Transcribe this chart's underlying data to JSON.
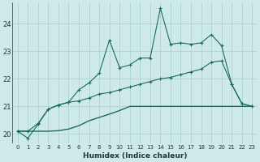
{
  "xlabel": "Humidex (Indice chaleur)",
  "bg_color": "#ceeae8",
  "grid_color": "#aed4d0",
  "line_color": "#1a6b5a",
  "xlim": [
    -0.5,
    23.5
  ],
  "ylim": [
    19.65,
    24.75
  ],
  "x_ticks": [
    0,
    1,
    2,
    3,
    4,
    5,
    6,
    7,
    8,
    9,
    10,
    11,
    12,
    13,
    14,
    15,
    16,
    17,
    18,
    19,
    20,
    21,
    22,
    23
  ],
  "y_ticks": [
    20,
    21,
    22,
    23,
    24
  ],
  "line1_x": [
    0,
    1,
    2,
    3,
    4,
    5,
    6,
    7,
    8,
    9,
    10,
    11,
    12,
    13,
    14,
    15,
    16,
    17,
    18,
    19,
    20,
    21,
    22,
    23
  ],
  "line1_y": [
    20.1,
    19.85,
    20.35,
    20.9,
    21.05,
    21.15,
    21.6,
    21.85,
    22.2,
    23.4,
    22.4,
    22.5,
    22.75,
    22.75,
    24.55,
    23.25,
    23.3,
    23.25,
    23.3,
    23.6,
    23.2,
    21.8,
    21.1,
    21.0
  ],
  "line2_x": [
    0,
    1,
    2,
    3,
    4,
    5,
    6,
    7,
    8,
    9,
    10,
    11,
    12,
    13,
    14,
    15,
    16,
    17,
    18,
    19,
    20,
    21,
    22,
    23
  ],
  "line2_y": [
    20.1,
    20.1,
    20.38,
    20.9,
    21.05,
    21.15,
    21.2,
    21.3,
    21.45,
    21.5,
    21.6,
    21.7,
    21.8,
    21.9,
    22.0,
    22.05,
    22.15,
    22.25,
    22.35,
    22.6,
    22.65,
    21.8,
    21.1,
    21.0
  ],
  "line3_x": [
    0,
    1,
    2,
    3,
    4,
    5,
    6,
    7,
    8,
    9,
    10,
    11,
    12,
    13,
    14,
    15,
    16,
    17,
    18,
    19,
    20,
    21,
    22,
    23
  ],
  "line3_y": [
    20.1,
    20.1,
    20.1,
    20.1,
    20.12,
    20.18,
    20.3,
    20.48,
    20.6,
    20.72,
    20.85,
    21.0,
    21.0,
    21.0,
    21.0,
    21.0,
    21.0,
    21.0,
    21.0,
    21.0,
    21.0,
    21.0,
    21.0,
    21.0
  ]
}
